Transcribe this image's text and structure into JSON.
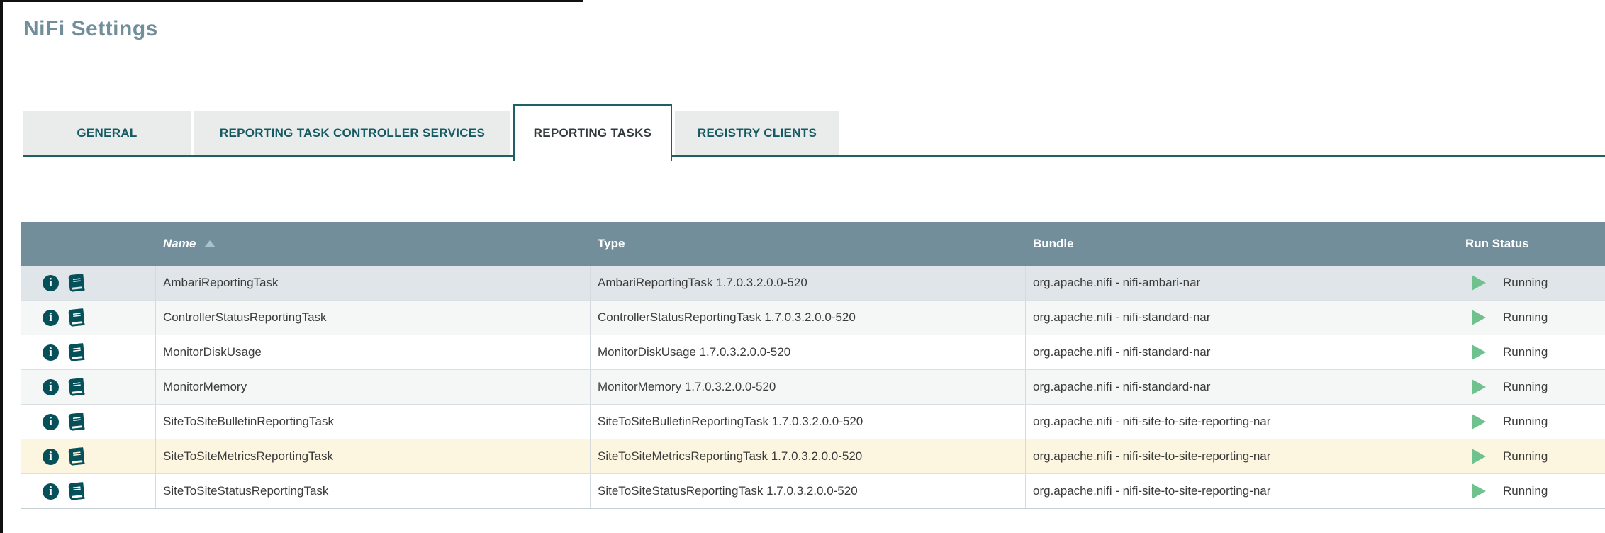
{
  "page": {
    "title": "NiFi Settings"
  },
  "tabs": [
    {
      "id": "general",
      "label": "GENERAL",
      "active": false
    },
    {
      "id": "reporting-task-controller-services",
      "label": "REPORTING TASK CONTROLLER SERVICES",
      "active": false
    },
    {
      "id": "reporting-tasks",
      "label": "REPORTING TASKS",
      "active": true
    },
    {
      "id": "registry-clients",
      "label": "REGISTRY CLIENTS",
      "active": false
    }
  ],
  "table": {
    "columns": {
      "name": "Name",
      "type": "Type",
      "bundle": "Bundle",
      "run_status": "Run Status"
    },
    "sort": {
      "column": "Name",
      "direction": "ascending"
    },
    "row_action_icons": [
      {
        "name": "view-details-icon",
        "glyph": "i"
      },
      {
        "name": "view-usage-icon",
        "glyph": "book"
      }
    ],
    "rows": [
      {
        "name": "AmbariReportingTask",
        "type": "AmbariReportingTask 1.7.0.3.2.0.0-520",
        "bundle": "org.apache.nifi - nifi-ambari-nar",
        "run_status": "Running",
        "state": "hover"
      },
      {
        "name": "ControllerStatusReportingTask",
        "type": "ControllerStatusReportingTask 1.7.0.3.2.0.0-520",
        "bundle": "org.apache.nifi - nifi-standard-nar",
        "run_status": "Running",
        "state": ""
      },
      {
        "name": "MonitorDiskUsage",
        "type": "MonitorDiskUsage 1.7.0.3.2.0.0-520",
        "bundle": "org.apache.nifi - nifi-standard-nar",
        "run_status": "Running",
        "state": ""
      },
      {
        "name": "MonitorMemory",
        "type": "MonitorMemory 1.7.0.3.2.0.0-520",
        "bundle": "org.apache.nifi - nifi-standard-nar",
        "run_status": "Running",
        "state": ""
      },
      {
        "name": "SiteToSiteBulletinReportingTask",
        "type": "SiteToSiteBulletinReportingTask 1.7.0.3.2.0.0-520",
        "bundle": "org.apache.nifi - nifi-site-to-site-reporting-nar",
        "run_status": "Running",
        "state": ""
      },
      {
        "name": "SiteToSiteMetricsReportingTask",
        "type": "SiteToSiteMetricsReportingTask 1.7.0.3.2.0.0-520",
        "bundle": "org.apache.nifi - nifi-site-to-site-reporting-nar",
        "run_status": "Running",
        "state": "highlighted"
      },
      {
        "name": "SiteToSiteStatusReportingTask",
        "type": "SiteToSiteStatusReportingTask 1.7.0.3.2.0.0-520",
        "bundle": "org.apache.nifi - nifi-site-to-site-reporting-nar",
        "run_status": "Running",
        "state": ""
      }
    ]
  },
  "colors": {
    "accent_teal": "#1f5f66",
    "header_bg": "#728e9b",
    "title": "#728e9b",
    "running_green": "#6fc28e",
    "row_hover": "#dfe5e8",
    "row_even": "#f5f6f6",
    "row_highlight": "#fcf5e0",
    "icon_teal": "#06505a"
  }
}
